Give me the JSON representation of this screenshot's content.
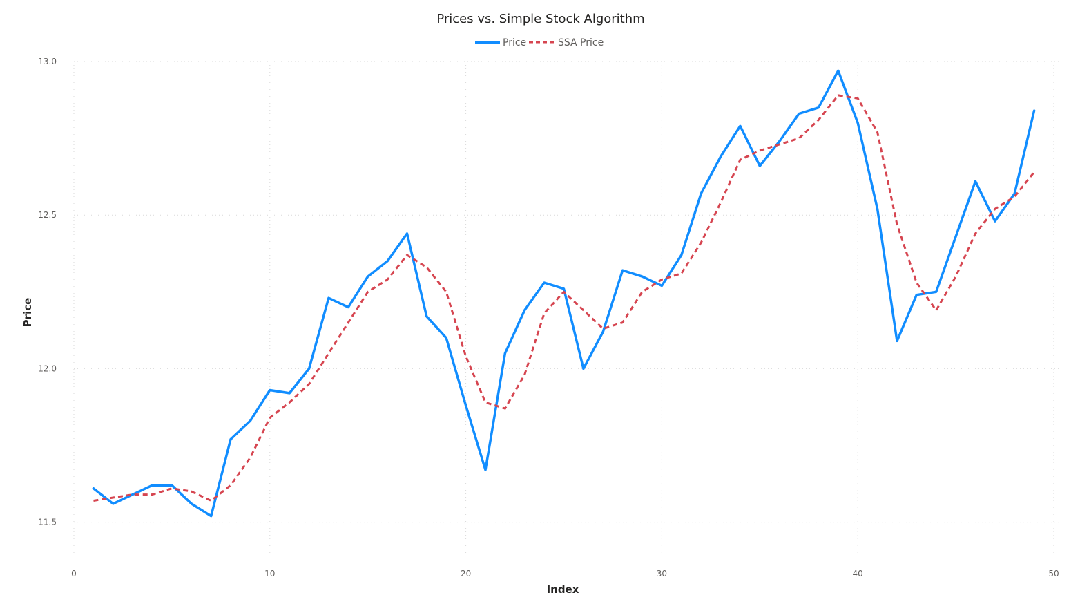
{
  "chart_data": {
    "type": "line",
    "title": "Prices vs. Simple Stock Algorithm",
    "xlabel": "Index",
    "ylabel": "Price",
    "xlim": [
      0,
      50
    ],
    "ylim": [
      11.4,
      13.0
    ],
    "xticks": [
      "0",
      "10",
      "20",
      "30",
      "40",
      "50"
    ],
    "yticks": [
      "11.5",
      "12.0",
      "12.5",
      "13.0"
    ],
    "grid": true,
    "legend_position": "top-center",
    "x": [
      1,
      2,
      3,
      4,
      5,
      6,
      7,
      8,
      9,
      10,
      11,
      12,
      13,
      14,
      15,
      16,
      17,
      18,
      19,
      20,
      21,
      22,
      23,
      24,
      25,
      26,
      27,
      28,
      29,
      30,
      31,
      32,
      33,
      34,
      35,
      36,
      37,
      38,
      39,
      40,
      41,
      42,
      43,
      44,
      45,
      46,
      47,
      48,
      49
    ],
    "series": [
      {
        "name": "Price",
        "color": "#118DFF",
        "style": "solid",
        "values": [
          11.61,
          11.56,
          11.59,
          11.62,
          11.62,
          11.56,
          11.52,
          11.77,
          11.83,
          11.93,
          11.92,
          12.0,
          12.23,
          12.2,
          12.3,
          12.35,
          12.44,
          12.17,
          12.1,
          11.88,
          11.67,
          12.05,
          12.19,
          12.28,
          12.26,
          12.0,
          12.12,
          12.32,
          12.3,
          12.27,
          12.37,
          12.57,
          12.69,
          12.79,
          12.66,
          12.74,
          12.83,
          12.85,
          12.97,
          12.8,
          12.52,
          12.09,
          12.24,
          12.25,
          12.43,
          12.61,
          12.48,
          12.57,
          12.84
        ]
      },
      {
        "name": "SSA Price",
        "color": "#D64550",
        "style": "dashed",
        "values": [
          11.57,
          11.58,
          11.59,
          11.59,
          11.61,
          11.6,
          11.57,
          11.62,
          11.71,
          11.84,
          11.89,
          11.95,
          12.05,
          12.15,
          12.25,
          12.29,
          12.37,
          12.33,
          12.25,
          12.04,
          11.89,
          11.87,
          11.98,
          12.18,
          12.25,
          12.19,
          12.13,
          12.15,
          12.25,
          12.29,
          12.31,
          12.41,
          12.54,
          12.68,
          12.71,
          12.73,
          12.75,
          12.81,
          12.89,
          12.88,
          12.77,
          12.47,
          12.28,
          12.19,
          12.3,
          12.44,
          12.52,
          12.56,
          12.64
        ]
      }
    ]
  }
}
